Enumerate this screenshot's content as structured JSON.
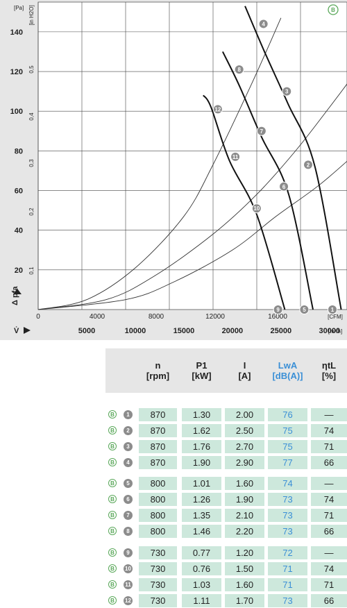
{
  "chart_data": {
    "type": "line",
    "left_axis": {
      "label": "Δ pfa",
      "unit": "[Pa]",
      "ticks": [
        20,
        40,
        60,
        80,
        100,
        120,
        140
      ],
      "range": [
        0,
        155
      ]
    },
    "inner_axis": {
      "unit": "[in H2O]",
      "ticks": [
        "0,1",
        "0,2",
        "0,3",
        "0,4",
        "0,5"
      ]
    },
    "x_top_axis": {
      "unit": "[CFM]",
      "ticks": [
        "0",
        "4000",
        "8000",
        "12000",
        "16000"
      ]
    },
    "x_bottom_axis": {
      "label": "V̇",
      "unit": "[m³/h]",
      "ticks": [
        "5000",
        "10000",
        "15000",
        "20000",
        "25000",
        "30000"
      ],
      "range": [
        0,
        31800
      ]
    },
    "curve_label": "B",
    "fan_curves": [
      {
        "name": "870",
        "points": [
          [
            21300,
            153
          ],
          [
            23300,
            130
          ],
          [
            25700,
            104
          ],
          [
            28500,
            72
          ],
          [
            31200,
            0
          ]
        ]
      },
      {
        "name": "800",
        "points": [
          [
            19000,
            130
          ],
          [
            20700,
            113
          ],
          [
            23000,
            87
          ],
          [
            25800,
            58
          ],
          [
            28300,
            0
          ]
        ]
      },
      {
        "name": "730",
        "points": [
          [
            17000,
            108
          ],
          [
            17800,
            102
          ],
          [
            19700,
            75
          ],
          [
            22500,
            48
          ],
          [
            25400,
            0
          ]
        ]
      }
    ],
    "system_curves": [
      {
        "points": [
          [
            0,
            0
          ],
          [
            5000,
            5
          ],
          [
            10000,
            21
          ],
          [
            15000,
            47
          ],
          [
            18000,
            73
          ],
          [
            22000,
            114
          ],
          [
            25000,
            147
          ]
        ]
      },
      {
        "points": [
          [
            0,
            0
          ],
          [
            7000,
            5
          ],
          [
            12000,
            17
          ],
          [
            18000,
            38
          ],
          [
            22500,
            58
          ],
          [
            26500,
            80
          ],
          [
            30000,
            102
          ],
          [
            32000,
            115
          ]
        ]
      },
      {
        "points": [
          [
            0,
            0
          ],
          [
            9000,
            5
          ],
          [
            14000,
            14
          ],
          [
            20000,
            30
          ],
          [
            24500,
            47
          ],
          [
            29000,
            63
          ],
          [
            33000,
            80
          ]
        ]
      }
    ],
    "operating_points": [
      {
        "id": "1",
        "x": 30300,
        "y": 0
      },
      {
        "id": "2",
        "x": 27800,
        "y": 73
      },
      {
        "id": "3",
        "x": 25600,
        "y": 110
      },
      {
        "id": "4",
        "x": 23200,
        "y": 144
      },
      {
        "id": "5",
        "x": 27400,
        "y": 0
      },
      {
        "id": "6",
        "x": 25300,
        "y": 62
      },
      {
        "id": "7",
        "x": 23000,
        "y": 90
      },
      {
        "id": "8",
        "x": 20700,
        "y": 121
      },
      {
        "id": "9",
        "x": 24700,
        "y": 0
      },
      {
        "id": "10",
        "x": 22500,
        "y": 51
      },
      {
        "id": "11",
        "x": 20300,
        "y": 77
      },
      {
        "id": "12",
        "x": 18500,
        "y": 101
      }
    ]
  },
  "table": {
    "headers": [
      {
        "key": "n",
        "line1": "n",
        "line2": "[rpm]",
        "blue": false
      },
      {
        "key": "p1",
        "line1": "P1",
        "line2": "[kW]",
        "blue": false
      },
      {
        "key": "i",
        "line1": "I",
        "line2": "[A]",
        "blue": false
      },
      {
        "key": "lwa",
        "line1": "LwA",
        "line2": "[dB(A)]",
        "blue": true
      },
      {
        "key": "eta",
        "line1": "ηtL",
        "line2": "[%]",
        "blue": false
      }
    ],
    "curve_badge": "B",
    "rows": [
      {
        "id": "1",
        "n": "870",
        "p1": "1.30",
        "i": "2.00",
        "lwa": "76",
        "eta": "—"
      },
      {
        "id": "2",
        "n": "870",
        "p1": "1.62",
        "i": "2.50",
        "lwa": "75",
        "eta": "74"
      },
      {
        "id": "3",
        "n": "870",
        "p1": "1.76",
        "i": "2.70",
        "lwa": "75",
        "eta": "71"
      },
      {
        "id": "4",
        "n": "870",
        "p1": "1.90",
        "i": "2.90",
        "lwa": "77",
        "eta": "66"
      },
      {
        "id": "5",
        "n": "800",
        "p1": "1.01",
        "i": "1.60",
        "lwa": "74",
        "eta": "—"
      },
      {
        "id": "6",
        "n": "800",
        "p1": "1.26",
        "i": "1.90",
        "lwa": "73",
        "eta": "74"
      },
      {
        "id": "7",
        "n": "800",
        "p1": "1.35",
        "i": "2.10",
        "lwa": "73",
        "eta": "71"
      },
      {
        "id": "8",
        "n": "800",
        "p1": "1.46",
        "i": "2.20",
        "lwa": "73",
        "eta": "66"
      },
      {
        "id": "9",
        "n": "730",
        "p1": "0.77",
        "i": "1.20",
        "lwa": "72",
        "eta": "—"
      },
      {
        "id": "10",
        "n": "730",
        "p1": "0.76",
        "i": "1.50",
        "lwa": "71",
        "eta": "74"
      },
      {
        "id": "11",
        "n": "730",
        "p1": "1.03",
        "i": "1.60",
        "lwa": "71",
        "eta": "71"
      },
      {
        "id": "12",
        "n": "730",
        "p1": "1.11",
        "i": "1.70",
        "lwa": "73",
        "eta": "66"
      }
    ]
  }
}
